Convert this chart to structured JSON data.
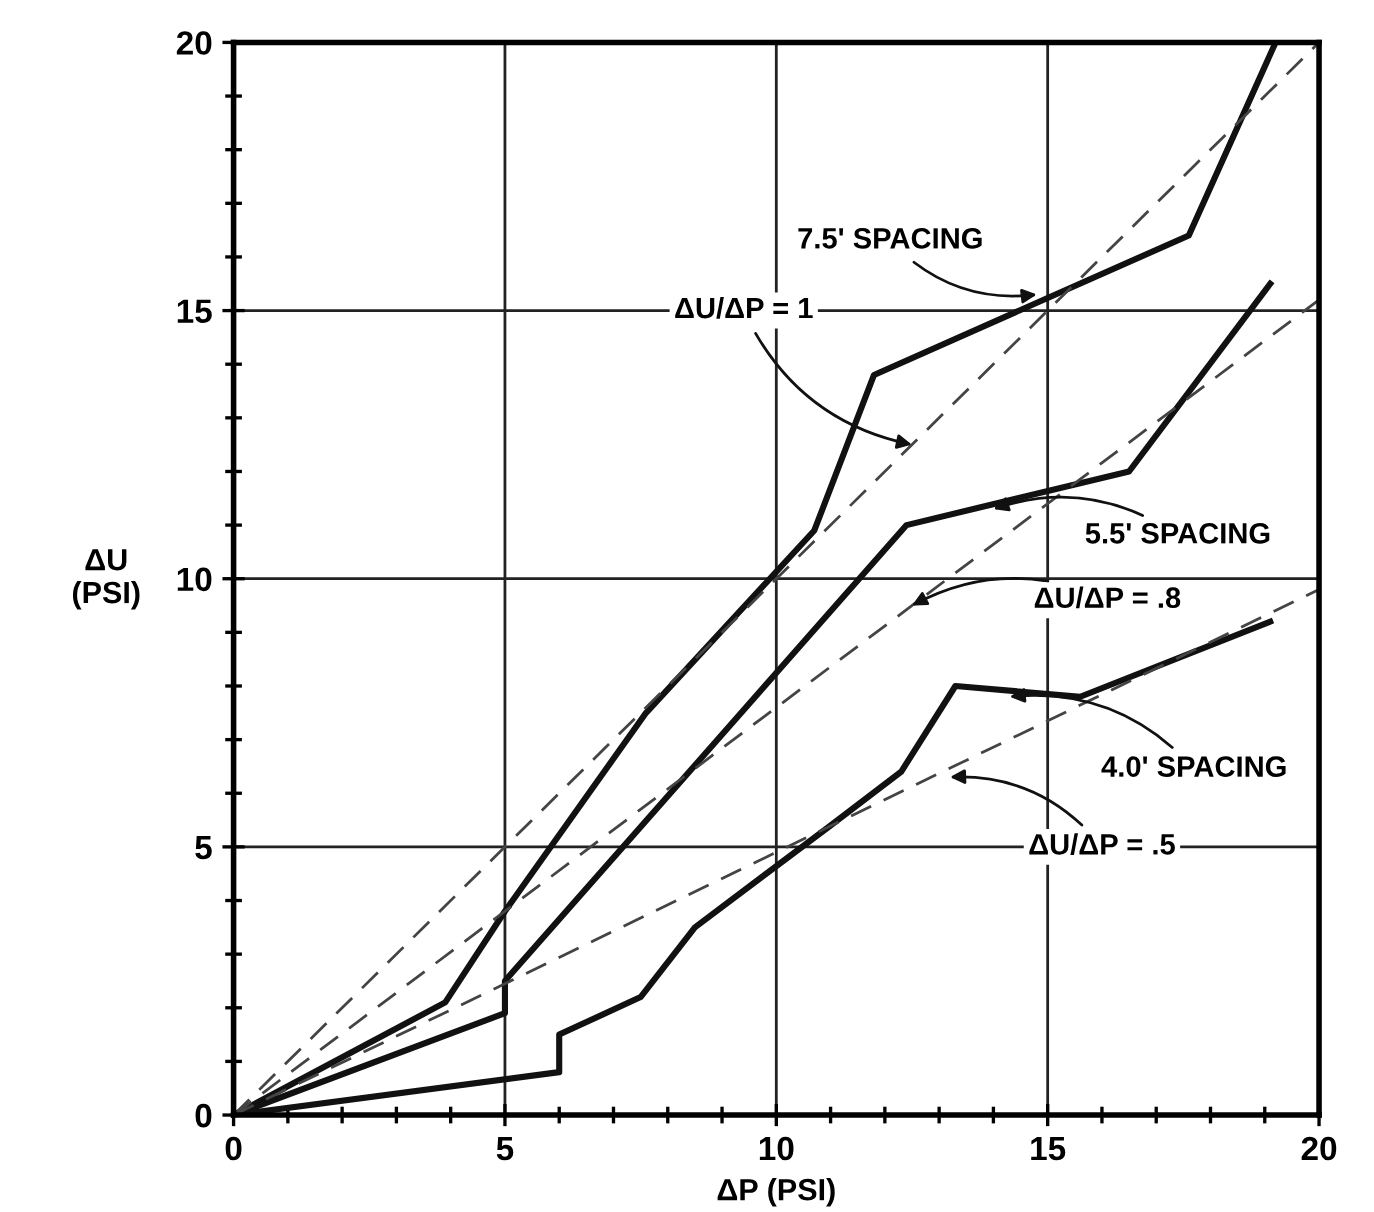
{
  "chart_data": {
    "type": "line",
    "xlabel": "ΔP (PSI)",
    "ylabel": "ΔU\n(PSI)",
    "xlim": [
      0,
      20
    ],
    "ylim": [
      0,
      20
    ],
    "xticks": [
      0,
      {
        "value": 1,
        "label": null
      },
      {
        "value": 2,
        "label": null
      },
      {
        "value": 3,
        "label": null
      },
      {
        "value": 4,
        "label": null
      },
      5,
      {
        "value": 6,
        "label": null
      },
      {
        "value": 7,
        "label": null
      },
      {
        "value": 8,
        "label": null
      },
      {
        "value": 9,
        "label": null
      },
      10,
      {
        "value": 11,
        "label": null
      },
      {
        "value": 12,
        "label": null
      },
      {
        "value": 13,
        "label": null
      },
      {
        "value": 14,
        "label": null
      },
      15,
      {
        "value": 16,
        "label": null
      },
      {
        "value": 17,
        "label": null
      },
      {
        "value": 18,
        "label": null
      },
      {
        "value": 19,
        "label": null
      },
      20
    ],
    "yticks": [
      0,
      {
        "value": 1,
        "label": null
      },
      {
        "value": 2,
        "label": null
      },
      {
        "value": 3,
        "label": null
      },
      {
        "value": 4,
        "label": null
      },
      5,
      {
        "value": 6,
        "label": null
      },
      {
        "value": 7,
        "label": null
      },
      {
        "value": 8,
        "label": null
      },
      {
        "value": 9,
        "label": null
      },
      10,
      {
        "value": 11,
        "label": null
      },
      {
        "value": 12,
        "label": null
      },
      {
        "value": 13,
        "label": null
      },
      {
        "value": 14,
        "label": null
      },
      15,
      {
        "value": 16,
        "label": null
      },
      {
        "value": 17,
        "label": null
      },
      {
        "value": 18,
        "label": null
      },
      {
        "value": 19,
        "label": null
      },
      20
    ],
    "grid": true,
    "marker": "none",
    "series": [
      {
        "color": "#111111",
        "line_style": "solid",
        "x": [
          0,
          3.9,
          5,
          7.6,
          10.7,
          11.8,
          17.6,
          19.2
        ],
        "values": [
          0,
          2.1,
          3.8,
          7.5,
          10.9,
          13.8,
          16.4,
          20
        ]
      },
      {
        "color": "#111111",
        "line_style": "solid",
        "x": [
          0,
          5,
          5,
          12.4,
          16.5,
          19.1
        ],
        "values": [
          0,
          1.9,
          2.5,
          11.0,
          12.0,
          15.5
        ]
      },
      {
        "color": "#111111",
        "line_style": "solid",
        "x": [
          0,
          6.0,
          6.0,
          7.5,
          8.5,
          11.0,
          12.3,
          13.3,
          15.6,
          19.1
        ],
        "values": [
          0,
          0.8,
          1.5,
          2.2,
          3.5,
          5.4,
          6.4,
          8.0,
          7.8,
          9.2
        ]
      },
      {
        "color": "#444444",
        "line_style": "dashed",
        "x": [
          0,
          20
        ],
        "values": [
          0,
          20
        ]
      },
      {
        "color": "#444444",
        "line_style": "dashed",
        "x": [
          0,
          20
        ],
        "values": [
          0,
          15.2
        ]
      },
      {
        "color": "#444444",
        "line_style": "dashed",
        "x": [
          0,
          20
        ],
        "values": [
          0,
          9.8
        ]
      }
    ],
    "annotations": [
      {
        "text": "7.5' SPACING",
        "x": 14.8,
        "y": 15.3
      },
      {
        "text": "ΔU/ΔP = 1",
        "x": 12.5,
        "y": 12.5
      },
      {
        "text": "5.5' SPACING",
        "x": 14.0,
        "y": 11.3
      },
      {
        "text": "ΔU/ΔP = .8",
        "x": 12.5,
        "y": 9.5
      },
      {
        "text": "4.0' SPACING",
        "x": 14.3,
        "y": 7.8
      },
      {
        "text": "ΔU/ΔP = .5",
        "x": 13.2,
        "y": 6.3
      }
    ]
  }
}
